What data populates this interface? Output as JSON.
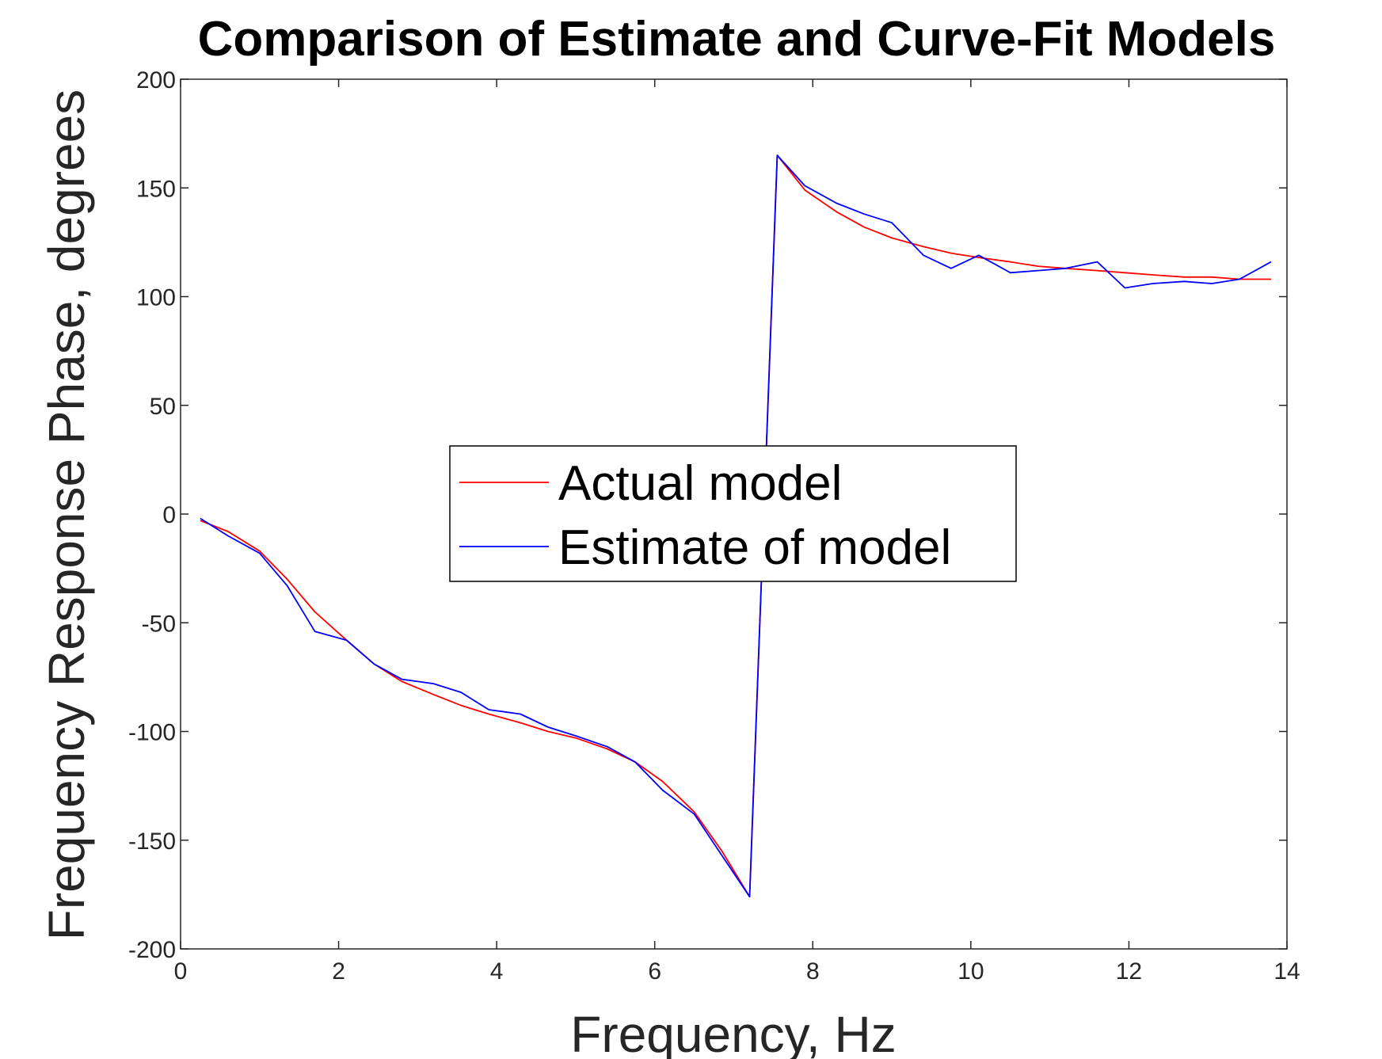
{
  "chart_data": {
    "type": "line",
    "title": "Comparison of Estimate and Curve-Fit Models",
    "xlabel": "Frequency, Hz",
    "ylabel": "Frequency Response Phase, degrees",
    "xlim": [
      0,
      14
    ],
    "ylim": [
      -200,
      200
    ],
    "xticks": [
      0,
      2,
      4,
      6,
      8,
      10,
      12,
      14
    ],
    "yticks": [
      -200,
      -150,
      -100,
      -50,
      0,
      50,
      100,
      150,
      200
    ],
    "grid": false,
    "legend_position": "center",
    "series": [
      {
        "name": "Actual model",
        "color": "#ff0000",
        "x": [
          0.25,
          0.6,
          1.0,
          1.35,
          1.7,
          2.1,
          2.45,
          2.8,
          3.2,
          3.55,
          3.9,
          4.3,
          4.65,
          5.0,
          5.4,
          5.75,
          6.1,
          6.5,
          6.85,
          7.2,
          7.55,
          7.9,
          8.3,
          8.65,
          9.0,
          9.4,
          9.75,
          10.1,
          10.5,
          10.85,
          11.2,
          11.6,
          11.95,
          12.3,
          12.7,
          13.05,
          13.4,
          13.8
        ],
        "y": [
          -3,
          -8,
          -17,
          -30,
          -45,
          -58,
          -69,
          -77,
          -83,
          -88,
          -92,
          -96,
          -100,
          -103,
          -108,
          -114,
          -123,
          -137,
          -155,
          -176,
          165,
          149,
          139,
          132,
          127,
          123,
          120,
          118,
          116,
          114,
          113,
          112,
          111,
          110,
          109,
          109,
          108,
          108
        ]
      },
      {
        "name": "Estimate of model",
        "color": "#0000ff",
        "x": [
          0.25,
          0.6,
          1.0,
          1.35,
          1.7,
          2.1,
          2.45,
          2.8,
          3.2,
          3.55,
          3.9,
          4.3,
          4.65,
          5.0,
          5.4,
          5.75,
          6.1,
          6.5,
          6.85,
          7.2,
          7.55,
          7.9,
          8.3,
          8.65,
          9.0,
          9.4,
          9.75,
          10.1,
          10.5,
          10.85,
          11.2,
          11.6,
          11.95,
          12.3,
          12.7,
          13.05,
          13.4,
          13.8
        ],
        "y": [
          -2,
          -10,
          -18,
          -33,
          -54,
          -58,
          -69,
          -76,
          -78,
          -82,
          -90,
          -92,
          -98,
          -102,
          -107,
          -114,
          -127,
          -138,
          -157,
          -176,
          165,
          151,
          143,
          138,
          134,
          119,
          113,
          119,
          111,
          112,
          113,
          116,
          104,
          106,
          107,
          106,
          108,
          116
        ]
      }
    ]
  }
}
